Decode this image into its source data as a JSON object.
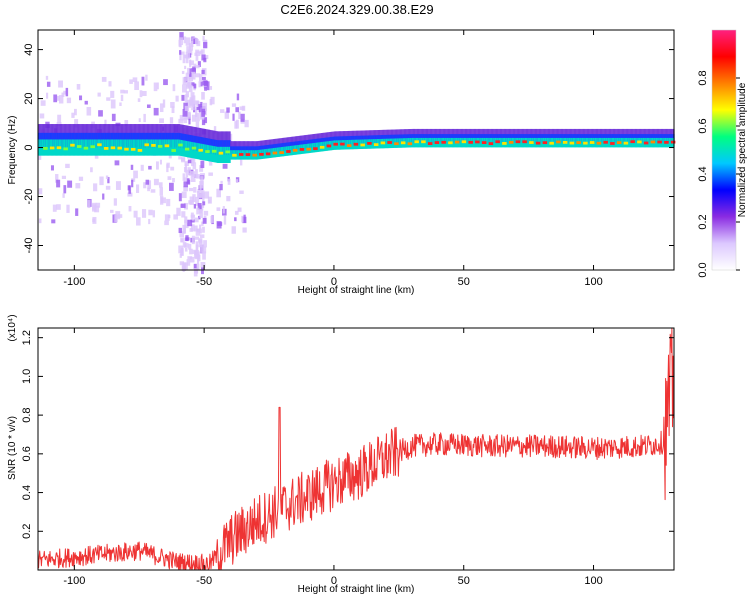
{
  "title": "C2E6.2024.329.00.38.E29",
  "chart_data": [
    {
      "type": "heatmap",
      "xlabel": "Height of straight line (km)",
      "ylabel": "Frequency (Hz)",
      "xlim": [
        -114,
        131
      ],
      "ylim": [
        -50,
        48
      ],
      "x_ticks": [
        -100,
        -50,
        0,
        50,
        100
      ],
      "y_ticks": [
        -40,
        -20,
        0,
        20,
        40
      ],
      "colorbar": {
        "label": "Normalized spectral amplitude",
        "range": [
          0.0,
          1.0
        ],
        "ticks": [
          "0.0",
          "0.2",
          "0.4",
          "0.6",
          "0.8"
        ],
        "colors": [
          "#ffffff",
          "#dcc8ff",
          "#8a2be2",
          "#0000ff",
          "#00c8ff",
          "#00ff80",
          "#ffff00",
          "#ff8000",
          "#ff0000",
          "#ff2080"
        ]
      },
      "band": {
        "center_freq": [
          {
            "x": -114,
            "f": 0
          },
          {
            "x": -60,
            "f": 0
          },
          {
            "x": -45,
            "f": -3
          },
          {
            "x": -30,
            "f": -3
          },
          {
            "x": -15,
            "f": -1
          },
          {
            "x": 0,
            "f": 1
          },
          {
            "x": 30,
            "f": 2
          },
          {
            "x": 131,
            "f": 2
          }
        ],
        "noise_column_x": [
          -60,
          -50
        ]
      }
    },
    {
      "type": "line",
      "xlabel": "Height of straight line (km)",
      "ylabel": "SNR (10 * v/v)",
      "y_multiplier": "(x10⁴)",
      "xlim": [
        -114,
        131
      ],
      "ylim": [
        0,
        1.25
      ],
      "x_ticks": [
        -100,
        -50,
        0,
        50,
        100
      ],
      "y_ticks": [
        "0.2",
        "0.4",
        "0.6",
        "0.8",
        "1.0",
        "1.2"
      ],
      "y_tick_values": [
        0.2,
        0.4,
        0.6,
        0.8,
        1.0,
        1.2
      ],
      "color": "#ee3333",
      "trend": [
        {
          "x": -114,
          "y": 0.05
        },
        {
          "x": -90,
          "y": 0.08
        },
        {
          "x": -75,
          "y": 0.1
        },
        {
          "x": -60,
          "y": 0.04
        },
        {
          "x": -48,
          "y": 0.03
        },
        {
          "x": -40,
          "y": 0.15
        },
        {
          "x": -30,
          "y": 0.25
        },
        {
          "x": -20,
          "y": 0.32
        },
        {
          "x": -10,
          "y": 0.38
        },
        {
          "x": 0,
          "y": 0.45
        },
        {
          "x": 10,
          "y": 0.5
        },
        {
          "x": 20,
          "y": 0.58
        },
        {
          "x": 30,
          "y": 0.64
        },
        {
          "x": 40,
          "y": 0.65
        },
        {
          "x": 60,
          "y": 0.64
        },
        {
          "x": 80,
          "y": 0.64
        },
        {
          "x": 100,
          "y": 0.63
        },
        {
          "x": 120,
          "y": 0.64
        },
        {
          "x": 127,
          "y": 0.66
        },
        {
          "x": 131,
          "y": 1.0
        }
      ],
      "spike": {
        "x": -21,
        "y": 0.84
      }
    }
  ]
}
